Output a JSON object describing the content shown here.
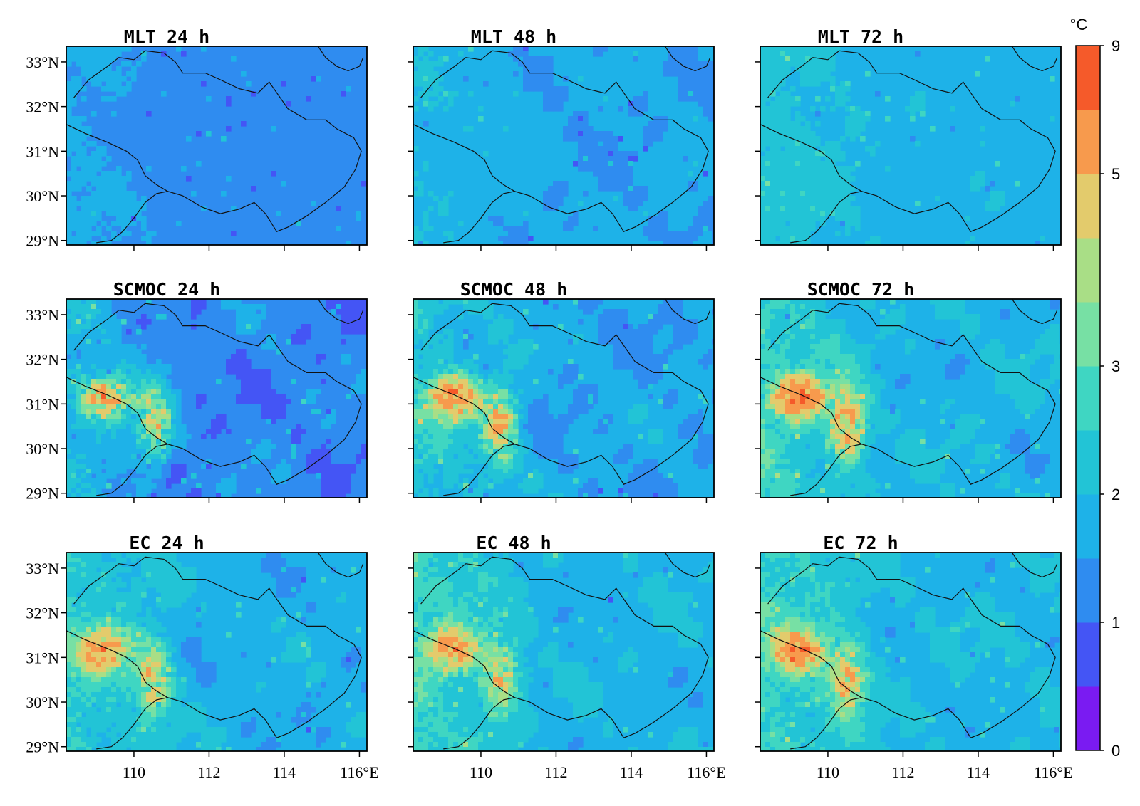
{
  "figure": {
    "panels": [
      {
        "title": "MLT 24 h",
        "model": "MLT",
        "lead": "24 h",
        "base": 1.25,
        "coast": 0.35,
        "hot": 0.0,
        "grain": 0.25
      },
      {
        "title": "MLT 48 h",
        "model": "MLT",
        "lead": "48 h",
        "base": 1.55,
        "coast": 0.4,
        "hot": 0.0,
        "grain": 0.28
      },
      {
        "title": "MLT 72 h",
        "model": "MLT",
        "lead": "72 h",
        "base": 1.8,
        "coast": 0.45,
        "hot": 0.05,
        "grain": 0.3
      },
      {
        "title": "SCMOC 24 h",
        "model": "SCMOC",
        "lead": "24 h",
        "base": 1.2,
        "coast": 0.7,
        "hot": 1.0,
        "grain": 0.6
      },
      {
        "title": "SCMOC 48 h",
        "model": "SCMOC",
        "lead": "48 h",
        "base": 1.6,
        "coast": 0.75,
        "hot": 1.05,
        "grain": 0.6
      },
      {
        "title": "SCMOC 72 h",
        "model": "SCMOC",
        "lead": "72 h",
        "base": 1.85,
        "coast": 0.8,
        "hot": 1.1,
        "grain": 0.6
      },
      {
        "title": "EC 24 h",
        "model": "EC",
        "lead": "24 h",
        "base": 1.75,
        "coast": 0.85,
        "hot": 0.85,
        "grain": 0.5
      },
      {
        "title": "EC 48 h",
        "model": "EC",
        "lead": "48 h",
        "base": 1.85,
        "coast": 0.85,
        "hot": 0.85,
        "grain": 0.5
      },
      {
        "title": "EC 72 h",
        "model": "EC",
        "lead": "72 h",
        "base": 1.9,
        "coast": 0.85,
        "hot": 0.9,
        "grain": 0.5
      }
    ],
    "lat_ticks": [
      "33°N",
      "32°N",
      "31°N",
      "30°N",
      "29°N"
    ],
    "lat_values": [
      33,
      32,
      31,
      30,
      29
    ],
    "lon_ticks": [
      "110",
      "112",
      "114",
      "116°E"
    ],
    "lon_values": [
      110,
      112,
      114,
      116
    ],
    "extent": {
      "lon_min": 108.2,
      "lon_max": 116.2,
      "lat_min": 28.9,
      "lat_max": 33.35
    }
  },
  "colorbar": {
    "unit": "°C",
    "tick_labels": [
      "0",
      "1",
      "2",
      "3",
      "5",
      "9"
    ],
    "levels": [
      0,
      0.5,
      1,
      1.5,
      2,
      2.5,
      3,
      3.5,
      4,
      5,
      7,
      9
    ],
    "colors": [
      "#7a1bf2",
      "#4455f5",
      "#2f8cf0",
      "#1eb2e8",
      "#22c4d6",
      "#3fd6c2",
      "#77e0a4",
      "#a9de86",
      "#e3cb6c",
      "#f79a4d",
      "#f55a2a"
    ]
  },
  "chart_data": {
    "type": "heatmap",
    "title": "",
    "colorbar_unit": "°C",
    "colorbar_range": [
      0,
      9
    ],
    "rows": [
      "MLT",
      "SCMOC",
      "EC"
    ],
    "columns": [
      "24 h",
      "48 h",
      "72 h"
    ],
    "xlabel": "",
    "ylabel": "",
    "x_ticks": [
      "110",
      "112",
      "114",
      "116°E"
    ],
    "y_ticks": [
      "33°N",
      "32°N",
      "31°N",
      "30°N",
      "29°N"
    ],
    "series": [
      {
        "name": "MLT 24 h",
        "typical_value": 1.25
      },
      {
        "name": "MLT 48 h",
        "typical_value": 1.55
      },
      {
        "name": "MLT 72 h",
        "typical_value": 1.8
      },
      {
        "name": "SCMOC 24 h",
        "typical_value": 1.2
      },
      {
        "name": "SCMOC 48 h",
        "typical_value": 1.6
      },
      {
        "name": "SCMOC 72 h",
        "typical_value": 1.85
      },
      {
        "name": "EC 24 h",
        "typical_value": 1.75
      },
      {
        "name": "EC 48 h",
        "typical_value": 1.85
      },
      {
        "name": "EC 72 h",
        "typical_value": 1.9
      }
    ]
  }
}
